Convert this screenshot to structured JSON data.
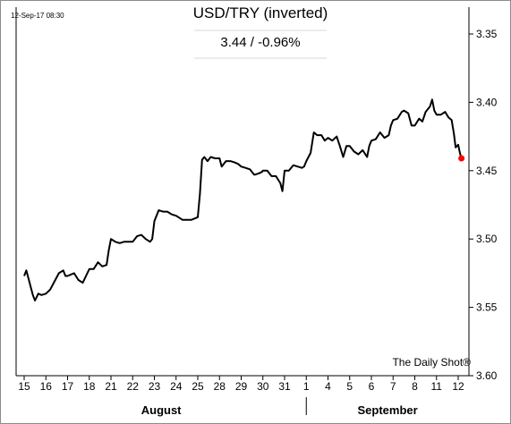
{
  "chart_data": {
    "type": "line",
    "title": "USD/TRY (inverted)",
    "subtitle": "3.44  /  -0.96%",
    "timestamp": "12-Sep-17 08:30",
    "source": "The Daily Shot®",
    "y_inverted": true,
    "ylim": [
      3.35,
      3.6
    ],
    "yticks": [
      "3.35",
      "3.40",
      "3.45",
      "3.50",
      "3.55",
      "3.60"
    ],
    "xticks": [
      "15",
      "16",
      "17",
      "18",
      "21",
      "22",
      "23",
      "24",
      "25",
      "28",
      "29",
      "30",
      "31",
      "1",
      "4",
      "5",
      "6",
      "7",
      "8",
      "11",
      "12"
    ],
    "month_labels": [
      "August",
      "September"
    ],
    "grid": false,
    "line_color": "#000000",
    "last_point_color": "#ff0000",
    "last_value": 3.44,
    "series": [
      {
        "values": [
          [
            0.0,
            3.527
          ],
          [
            0.1,
            3.523
          ],
          [
            0.2,
            3.529
          ],
          [
            0.3,
            3.535
          ],
          [
            0.4,
            3.541
          ],
          [
            0.5,
            3.545
          ],
          [
            0.65,
            3.54
          ],
          [
            0.8,
            3.541
          ],
          [
            1.0,
            3.54
          ],
          [
            1.2,
            3.537
          ],
          [
            1.4,
            3.531
          ],
          [
            1.6,
            3.525
          ],
          [
            1.8,
            3.523
          ],
          [
            1.9,
            3.527
          ],
          [
            2.0,
            3.527
          ],
          [
            2.3,
            3.525
          ],
          [
            2.5,
            3.53
          ],
          [
            2.7,
            3.532
          ],
          [
            2.85,
            3.527
          ],
          [
            3.0,
            3.522
          ],
          [
            3.2,
            3.522
          ],
          [
            3.4,
            3.517
          ],
          [
            3.6,
            3.52
          ],
          [
            3.8,
            3.519
          ],
          [
            3.9,
            3.508
          ],
          [
            4.0,
            3.5
          ],
          [
            4.2,
            3.502
          ],
          [
            4.4,
            3.503
          ],
          [
            4.6,
            3.502
          ],
          [
            4.8,
            3.502
          ],
          [
            5.0,
            3.502
          ],
          [
            5.2,
            3.498
          ],
          [
            5.4,
            3.497
          ],
          [
            5.6,
            3.5
          ],
          [
            5.8,
            3.502
          ],
          [
            5.9,
            3.5
          ],
          [
            6.0,
            3.487
          ],
          [
            6.2,
            3.479
          ],
          [
            6.4,
            3.48
          ],
          [
            6.6,
            3.48
          ],
          [
            6.8,
            3.482
          ],
          [
            7.0,
            3.483
          ],
          [
            7.3,
            3.486
          ],
          [
            7.5,
            3.486
          ],
          [
            7.7,
            3.486
          ],
          [
            7.85,
            3.485
          ],
          [
            8.0,
            3.484
          ],
          [
            8.1,
            3.467
          ],
          [
            8.2,
            3.442
          ],
          [
            8.3,
            3.44
          ],
          [
            8.45,
            3.443
          ],
          [
            8.6,
            3.44
          ],
          [
            8.8,
            3.441
          ],
          [
            9.0,
            3.441
          ],
          [
            9.1,
            3.447
          ],
          [
            9.3,
            3.443
          ],
          [
            9.5,
            3.443
          ],
          [
            9.7,
            3.444
          ],
          [
            9.85,
            3.445
          ],
          [
            10.0,
            3.447
          ],
          [
            10.2,
            3.448
          ],
          [
            10.4,
            3.449
          ],
          [
            10.6,
            3.453
          ],
          [
            10.8,
            3.452
          ],
          [
            10.95,
            3.451
          ],
          [
            11.0,
            3.45
          ],
          [
            11.2,
            3.45
          ],
          [
            11.4,
            3.454
          ],
          [
            11.6,
            3.454
          ],
          [
            11.8,
            3.459
          ],
          [
            11.9,
            3.465
          ],
          [
            12.0,
            3.45
          ],
          [
            12.2,
            3.45
          ],
          [
            12.4,
            3.446
          ],
          [
            12.6,
            3.447
          ],
          [
            12.8,
            3.448
          ],
          [
            12.9,
            3.447
          ],
          [
            13.0,
            3.443
          ],
          [
            13.2,
            3.437
          ],
          [
            13.35,
            3.422
          ],
          [
            13.5,
            3.424
          ],
          [
            13.7,
            3.424
          ],
          [
            13.85,
            3.428
          ],
          [
            14.0,
            3.426
          ],
          [
            14.2,
            3.428
          ],
          [
            14.4,
            3.425
          ],
          [
            14.55,
            3.432
          ],
          [
            14.7,
            3.44
          ],
          [
            14.85,
            3.432
          ],
          [
            15.0,
            3.432
          ],
          [
            15.2,
            3.436
          ],
          [
            15.4,
            3.438
          ],
          [
            15.6,
            3.435
          ],
          [
            15.8,
            3.44
          ],
          [
            15.9,
            3.432
          ],
          [
            16.0,
            3.428
          ],
          [
            16.2,
            3.427
          ],
          [
            16.4,
            3.422
          ],
          [
            16.6,
            3.426
          ],
          [
            16.8,
            3.424
          ],
          [
            16.9,
            3.417
          ],
          [
            17.0,
            3.413
          ],
          [
            17.2,
            3.412
          ],
          [
            17.4,
            3.407
          ],
          [
            17.5,
            3.406
          ],
          [
            17.7,
            3.408
          ],
          [
            17.85,
            3.417
          ],
          [
            18.0,
            3.417
          ],
          [
            18.2,
            3.412
          ],
          [
            18.35,
            3.414
          ],
          [
            18.5,
            3.407
          ],
          [
            18.7,
            3.403
          ],
          [
            18.8,
            3.398
          ],
          [
            18.9,
            3.406
          ],
          [
            19.0,
            3.409
          ],
          [
            19.2,
            3.409
          ],
          [
            19.4,
            3.407
          ],
          [
            19.55,
            3.411
          ],
          [
            19.7,
            3.413
          ],
          [
            19.8,
            3.423
          ],
          [
            19.88,
            3.433
          ],
          [
            20.0,
            3.431
          ],
          [
            20.08,
            3.437
          ],
          [
            20.15,
            3.441
          ]
        ]
      }
    ]
  }
}
